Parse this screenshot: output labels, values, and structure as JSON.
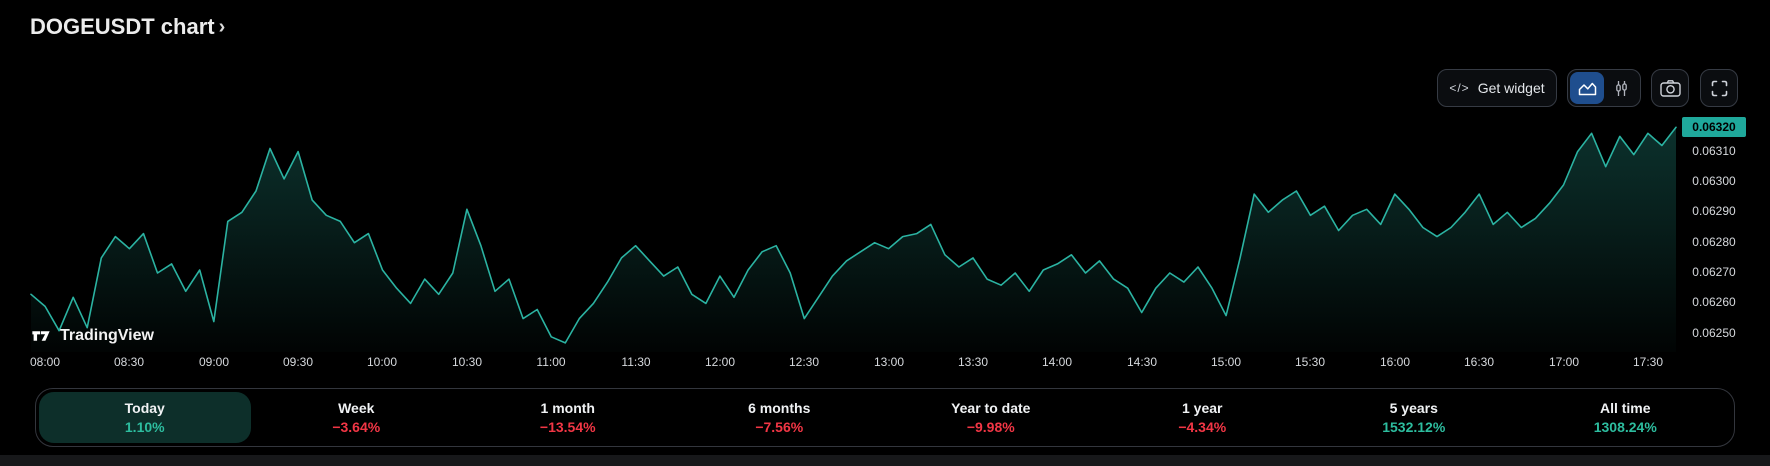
{
  "header": {
    "title": "DOGEUSDT chart",
    "chevron": "›"
  },
  "toolbar": {
    "code_icon": "</>",
    "get_widget_label": "Get widget"
  },
  "watermark": {
    "text": "TradingView"
  },
  "chart_data": {
    "type": "area",
    "symbol": "DOGEUSDT",
    "timeframe_start": "07:55",
    "timeframe_end": "17:40",
    "interval_minutes": 5,
    "x_tick_labels": [
      "08:00",
      "08:30",
      "09:00",
      "09:30",
      "10:00",
      "10:30",
      "11:00",
      "11:30",
      "12:00",
      "12:30",
      "13:00",
      "13:30",
      "14:00",
      "14:30",
      "15:00",
      "15:30",
      "16:00",
      "16:30",
      "17:00",
      "17:30"
    ],
    "y_tick_labels": [
      "0.06320",
      "0.06310",
      "0.06300",
      "0.06290",
      "0.06280",
      "0.06270",
      "0.06260",
      "0.06250"
    ],
    "y_range": {
      "min": 0.06246,
      "max": 0.06327
    },
    "current_price": 0.0632,
    "current_price_label": "0.06320",
    "grid": false,
    "legend": false,
    "prices": [
      0.06265,
      0.06261,
      0.06253,
      0.06264,
      0.06254,
      0.06277,
      0.06284,
      0.0628,
      0.06285,
      0.06272,
      0.06275,
      0.06266,
      0.06273,
      0.06256,
      0.06289,
      0.06292,
      0.06299,
      0.06313,
      0.06303,
      0.06312,
      0.06296,
      0.06291,
      0.06289,
      0.06282,
      0.06285,
      0.06273,
      0.06267,
      0.06262,
      0.0627,
      0.06265,
      0.06272,
      0.06293,
      0.06281,
      0.06266,
      0.0627,
      0.06257,
      0.0626,
      0.06251,
      0.06249,
      0.06257,
      0.06262,
      0.06269,
      0.06277,
      0.06281,
      0.06276,
      0.06271,
      0.06274,
      0.06265,
      0.06262,
      0.06271,
      0.06264,
      0.06273,
      0.06279,
      0.06281,
      0.06272,
      0.06257,
      0.06264,
      0.06271,
      0.06276,
      0.06279,
      0.06282,
      0.0628,
      0.06284,
      0.06285,
      0.06288,
      0.06278,
      0.06274,
      0.06277,
      0.0627,
      0.06268,
      0.06272,
      0.06266,
      0.06273,
      0.06275,
      0.06278,
      0.06272,
      0.06276,
      0.0627,
      0.06267,
      0.06259,
      0.06267,
      0.06272,
      0.06269,
      0.06274,
      0.06267,
      0.06258,
      0.06277,
      0.06298,
      0.06292,
      0.06296,
      0.06299,
      0.06291,
      0.06294,
      0.06286,
      0.06291,
      0.06293,
      0.06288,
      0.06298,
      0.06293,
      0.06287,
      0.06284,
      0.06287,
      0.06292,
      0.06298,
      0.06288,
      0.06292,
      0.06287,
      0.0629,
      0.06295,
      0.06301,
      0.06312,
      0.06318,
      0.06307,
      0.06317,
      0.06311,
      0.06318,
      0.06314,
      0.0632
    ]
  },
  "periods": {
    "items": [
      {
        "label": "Today",
        "value": "1.10%",
        "direction": "up",
        "selected": true
      },
      {
        "label": "Week",
        "value": "−3.64%",
        "direction": "down",
        "selected": false
      },
      {
        "label": "1 month",
        "value": "−13.54%",
        "direction": "down",
        "selected": false
      },
      {
        "label": "6 months",
        "value": "−7.56%",
        "direction": "down",
        "selected": false
      },
      {
        "label": "Year to date",
        "value": "−9.98%",
        "direction": "down",
        "selected": false
      },
      {
        "label": "1 year",
        "value": "−4.34%",
        "direction": "down",
        "selected": false
      },
      {
        "label": "5 years",
        "value": "1532.12%",
        "direction": "up",
        "selected": false
      },
      {
        "label": "All time",
        "value": "1308.24%",
        "direction": "up",
        "selected": false
      }
    ]
  },
  "colors": {
    "background": "#000000",
    "line": "#2bb3a2",
    "area_fill": "#2bb3a2",
    "up": "#2dbd9f",
    "down": "#f23645",
    "active_button_blue": "#1f4e8e",
    "price_badge_bg": "#1fa89b",
    "price_badge_text": "#000000",
    "selected_period_bg": "#0d2f2a",
    "axis_text": "#d6d9dd",
    "border": "#363b44"
  }
}
